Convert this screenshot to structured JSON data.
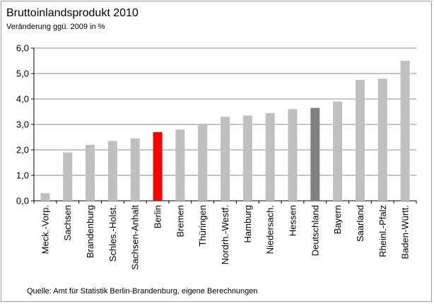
{
  "chart_data": {
    "type": "bar",
    "title": "Bruttoinlandsprodukt  2010",
    "subtitle": "Veränderung ggü. 2009 in %",
    "source": "Quelle: Amt für Statistik Berlin-Brandenburg,   eigene Berechnungen",
    "categories": [
      "Meck.-Vorp.",
      "Sachsen",
      "Brandenburg",
      "Schles.-Holst.",
      "Sachsen-Anhalt",
      "Berlin",
      "Bremen",
      "Thüringen",
      "Nordrh.-Westf.",
      "Hamburg",
      "Niedersach.",
      "Hessen",
      "Deutschland",
      "Bayern",
      "Saarland",
      "Rheinl.-Pfalz",
      "Baden-Württ."
    ],
    "values": [
      0.3,
      1.9,
      2.2,
      2.35,
      2.45,
      2.7,
      2.8,
      3.0,
      3.3,
      3.35,
      3.45,
      3.6,
      3.65,
      3.9,
      4.75,
      4.8,
      5.5
    ],
    "bar_colors": [
      "#bfbfbf",
      "#bfbfbf",
      "#bfbfbf",
      "#bfbfbf",
      "#bfbfbf",
      "#ff0000",
      "#bfbfbf",
      "#bfbfbf",
      "#bfbfbf",
      "#bfbfbf",
      "#bfbfbf",
      "#bfbfbf",
      "#808080",
      "#bfbfbf",
      "#bfbfbf",
      "#bfbfbf",
      "#bfbfbf"
    ],
    "ylim": [
      0,
      6
    ],
    "yticks": [
      "0,0",
      "1,0",
      "2,0",
      "3,0",
      "4,0",
      "5,0",
      "6,0"
    ],
    "grid": true,
    "xlabel": "",
    "ylabel": ""
  }
}
